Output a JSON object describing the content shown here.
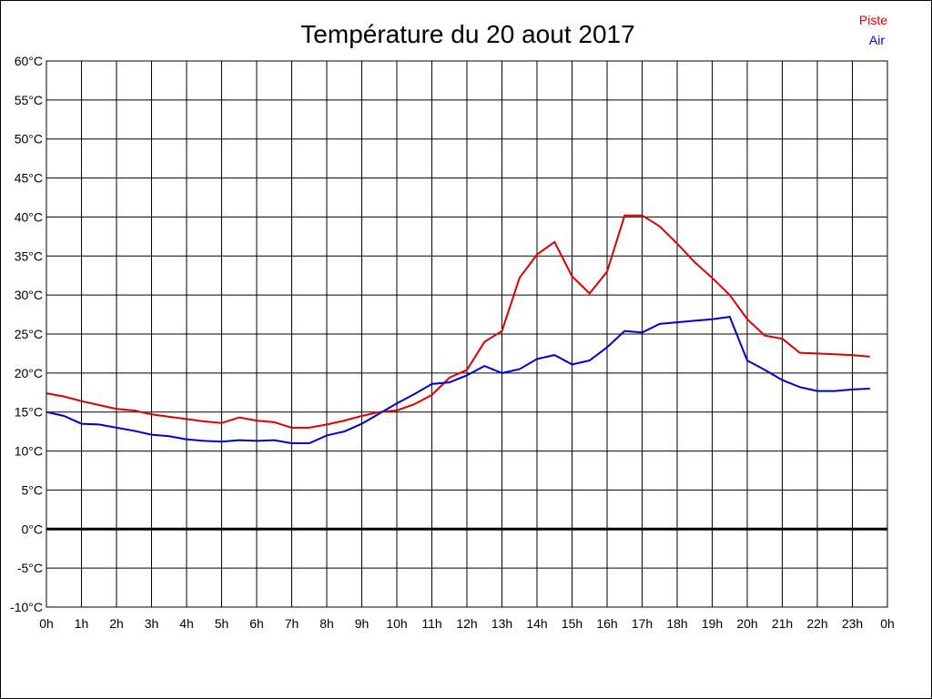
{
  "chart_data": {
    "type": "line",
    "title": "Température du 20 aout 2017",
    "xlabel": "",
    "ylabel": "",
    "xlim": [
      0,
      24
    ],
    "ylim": [
      -10,
      60
    ],
    "grid": true,
    "legend_position": "top-right",
    "y_ticks": [
      -10,
      -5,
      0,
      5,
      10,
      15,
      20,
      25,
      30,
      35,
      40,
      45,
      50,
      55,
      60
    ],
    "y_tick_labels": [
      "-10°C",
      "-5°C",
      "0°C",
      "5°C",
      "10°C",
      "15°C",
      "20°C",
      "25°C",
      "30°C",
      "35°C",
      "40°C",
      "45°C",
      "50°C",
      "55°C",
      "60°C"
    ],
    "x_ticks": [
      0,
      1,
      2,
      3,
      4,
      5,
      6,
      7,
      8,
      9,
      10,
      11,
      12,
      13,
      14,
      15,
      16,
      17,
      18,
      19,
      20,
      21,
      22,
      23,
      24
    ],
    "x_tick_labels": [
      "0h",
      "1h",
      "2h",
      "3h",
      "4h",
      "5h",
      "6h",
      "7h",
      "8h",
      "9h",
      "10h",
      "11h",
      "12h",
      "13h",
      "14h",
      "15h",
      "16h",
      "17h",
      "18h",
      "19h",
      "20h",
      "21h",
      "22h",
      "23h",
      "0h"
    ],
    "zero_line": 0,
    "x": [
      0,
      0.5,
      1,
      1.5,
      2,
      2.5,
      3,
      3.5,
      4,
      4.5,
      5,
      5.5,
      6,
      6.5,
      7,
      7.5,
      8,
      8.5,
      9,
      9.5,
      10,
      10.5,
      11,
      11.5,
      12,
      12.5,
      13,
      13.5,
      14,
      14.5,
      15,
      15.5,
      16,
      16.5,
      17,
      17.5,
      18,
      18.5,
      19,
      19.5,
      20,
      20.5,
      21,
      21.5,
      22,
      22.5,
      23,
      23.5
    ],
    "series": [
      {
        "name": "Piste",
        "color": "#dd0000",
        "values": [
          17.4,
          17.0,
          16.4,
          15.9,
          15.4,
          15.2,
          14.7,
          14.4,
          14.1,
          13.8,
          13.6,
          14.3,
          13.9,
          13.7,
          13.0,
          13.0,
          13.4,
          13.9,
          14.5,
          15.0,
          15.2,
          16.0,
          17.2,
          19.4,
          20.4,
          24.0,
          25.4,
          32.2,
          35.2,
          36.8,
          32.4,
          30.2,
          33.0,
          40.2,
          40.2,
          38.8,
          36.6,
          34.2,
          32.2,
          30.0,
          26.9,
          24.8,
          24.4,
          22.6,
          22.5,
          22.4,
          22.3,
          22.1
        ]
      },
      {
        "name": "Air",
        "color": "#0000cc",
        "values": [
          15.0,
          14.5,
          13.5,
          13.4,
          13.0,
          12.6,
          12.1,
          11.9,
          11.5,
          11.3,
          11.2,
          11.4,
          11.3,
          11.4,
          11.0,
          11.0,
          12.0,
          12.5,
          13.5,
          14.8,
          16.1,
          17.3,
          18.6,
          18.8,
          19.7,
          20.9,
          20.0,
          20.5,
          21.8,
          22.3,
          21.1,
          21.6,
          23.3,
          25.4,
          25.2,
          26.3,
          26.5,
          26.7,
          26.9,
          27.2,
          21.6,
          20.4,
          19.1,
          18.2,
          17.7,
          17.7,
          17.9,
          18.0
        ]
      }
    ]
  }
}
